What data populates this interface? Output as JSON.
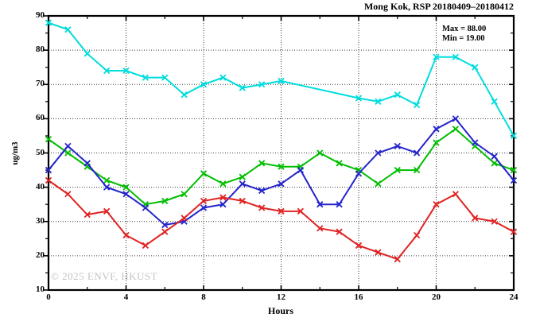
{
  "watermark": "© 2025 ENVF, HKUST",
  "chart_data": {
    "type": "line",
    "title": "Mong Kok, RSP 20180409–20180412",
    "xlabel": "Hours",
    "ylabel": "ug/m3",
    "xlim": [
      0,
      24
    ],
    "ylim": [
      10,
      90
    ],
    "x_major_ticks": [
      0,
      4,
      8,
      12,
      16,
      20,
      24
    ],
    "x_minor_ticks": [
      2,
      6,
      10,
      14,
      18,
      22
    ],
    "y_major_ticks": [
      10,
      20,
      30,
      40,
      50,
      60,
      70,
      80,
      90
    ],
    "y_minor_ticks": [
      15,
      25,
      35,
      45,
      55,
      65,
      75,
      85
    ],
    "x_grid": [
      4,
      8,
      12,
      16,
      20
    ],
    "y_grid": [
      20,
      30,
      40,
      50,
      60,
      70,
      80
    ],
    "grid_style": "dotted",
    "legend": "none",
    "marker": "x-cross",
    "x": [
      0,
      1,
      2,
      3,
      4,
      5,
      6,
      7,
      8,
      9,
      10,
      11,
      12,
      13,
      14,
      15,
      16,
      17,
      18,
      19,
      20,
      21,
      22,
      23,
      24
    ],
    "series": [
      {
        "name": "cyan",
        "color": "#00DDDD",
        "values": [
          88,
          86,
          79,
          74,
          74,
          72,
          72,
          67,
          70,
          72,
          69,
          70,
          71,
          null,
          null,
          null,
          66,
          65,
          67,
          64,
          78,
          78,
          75,
          65,
          55
        ]
      },
      {
        "name": "green",
        "color": "#00BE00",
        "values": [
          54,
          50,
          46,
          42,
          40,
          35,
          36,
          38,
          44,
          41,
          43,
          47,
          46,
          46,
          50,
          47,
          45,
          41,
          45,
          45,
          53,
          57,
          52,
          47,
          45
        ]
      },
      {
        "name": "blue",
        "color": "#2424CC",
        "values": [
          45,
          52,
          47,
          40,
          38,
          34,
          29,
          30,
          34,
          35,
          41,
          39,
          41,
          45,
          35,
          35,
          44,
          50,
          52,
          50,
          57,
          60,
          53,
          49,
          42
        ]
      },
      {
        "name": "red",
        "color": "#E02222",
        "values": [
          42,
          38,
          32,
          33,
          26,
          23,
          27,
          31,
          36,
          37,
          36,
          34,
          33,
          33,
          28,
          27,
          23,
          21,
          19,
          26,
          35,
          38,
          31,
          30,
          27
        ]
      }
    ],
    "annotations": {
      "max": "Max = 88.00",
      "min": "Min = 19.00"
    }
  }
}
